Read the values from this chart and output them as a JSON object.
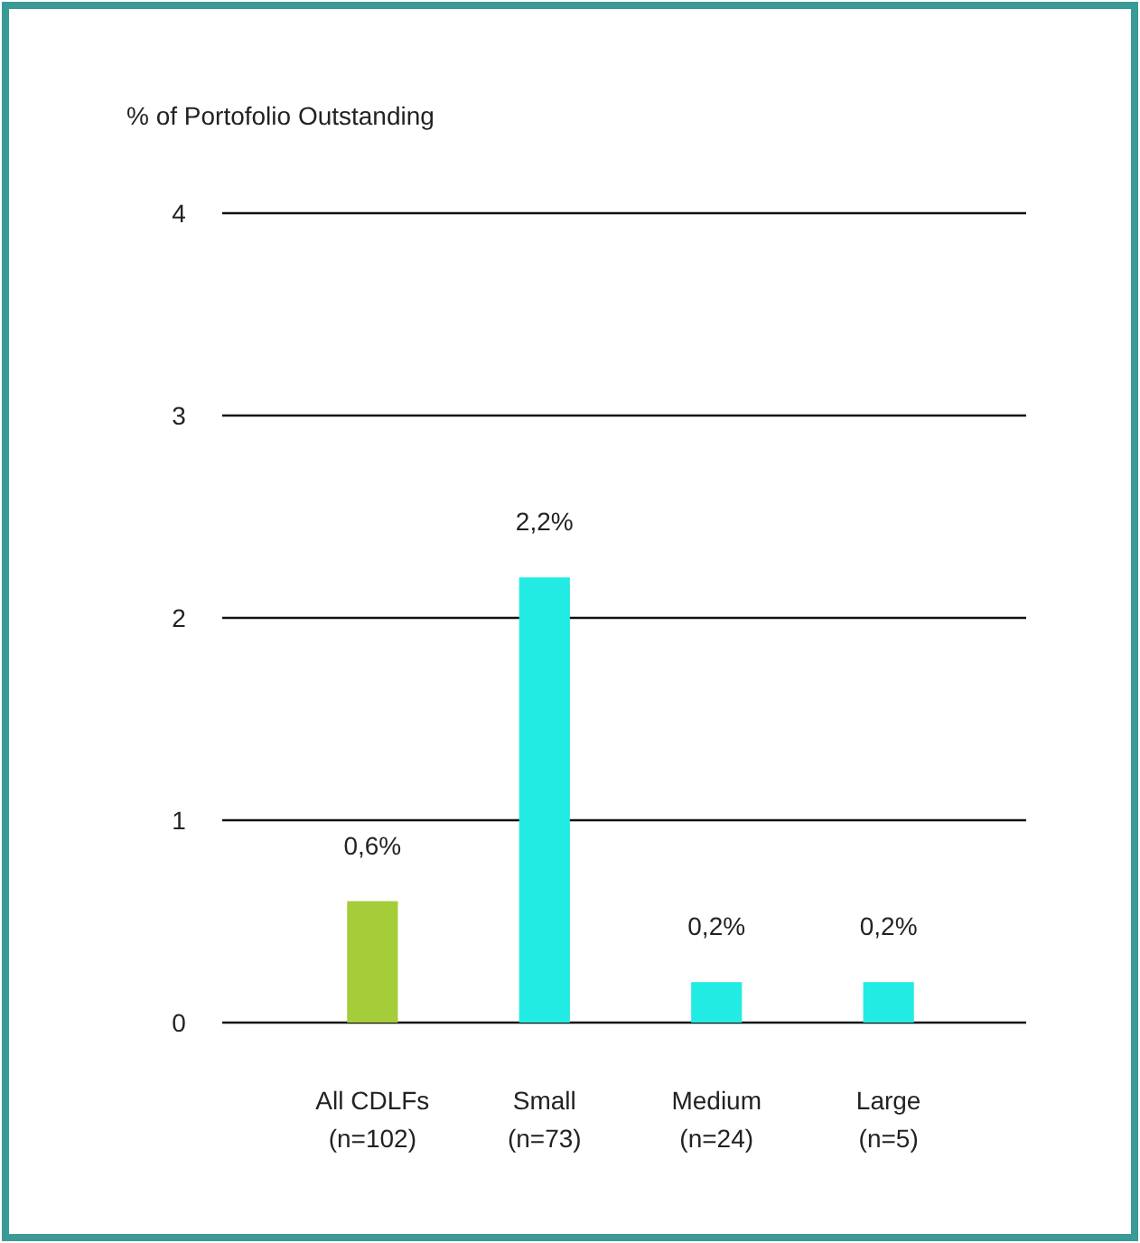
{
  "chart_data": {
    "type": "bar",
    "title": "% of Portofolio Outstanding",
    "categories": [
      "All CDLFs\n(n=102)",
      "Small\n(n=73)",
      "Medium\n(n=24)",
      "Large\n(n=5)"
    ],
    "values": [
      0.6,
      2.2,
      0.2,
      0.2
    ],
    "colors": [
      "#a5cd39",
      "#22ebe3",
      "#22ebe3",
      "#22ebe3"
    ],
    "value_labels": [
      "0,6%",
      "2,2%",
      "0,2%",
      "0,2%"
    ],
    "ylim": [
      0,
      4
    ],
    "yticks": [
      0,
      1,
      2,
      3,
      4
    ],
    "grid": "y"
  }
}
